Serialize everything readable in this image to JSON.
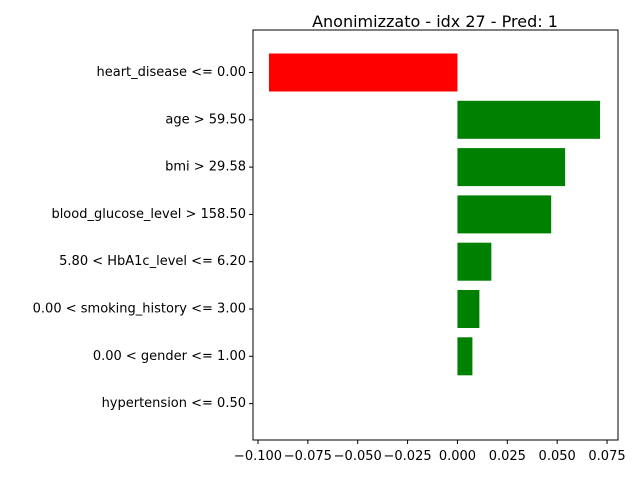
{
  "chart_data": {
    "type": "bar",
    "orientation": "horizontal",
    "title": "Anonimizzato - idx 27 - Pred: 1",
    "xlabel": "",
    "ylabel": "",
    "categories": [
      "heart_disease <= 0.00",
      "age > 59.50",
      "bmi > 29.58",
      "blood_glucose_level > 158.50",
      "5.80 < HbA1c_level <= 6.20",
      "0.00 < smoking_history <= 3.00",
      "0.00 < gender <= 1.00",
      "hypertension <= 0.50"
    ],
    "values": [
      -0.0945,
      0.0715,
      0.054,
      0.047,
      0.017,
      0.011,
      0.0075,
      0.0
    ],
    "xlim": [
      -0.1025,
      0.0805
    ],
    "xticks": [
      -0.1,
      -0.075,
      -0.05,
      -0.025,
      0.0,
      0.025,
      0.05,
      0.075
    ],
    "xtick_labels": [
      "−0.100",
      "−0.075",
      "−0.050",
      "−0.025",
      "0.000",
      "0.025",
      "0.050",
      "0.075"
    ],
    "colors": {
      "positive": "#008000",
      "negative": "#ff0000"
    },
    "grid": false,
    "legend": "none"
  }
}
